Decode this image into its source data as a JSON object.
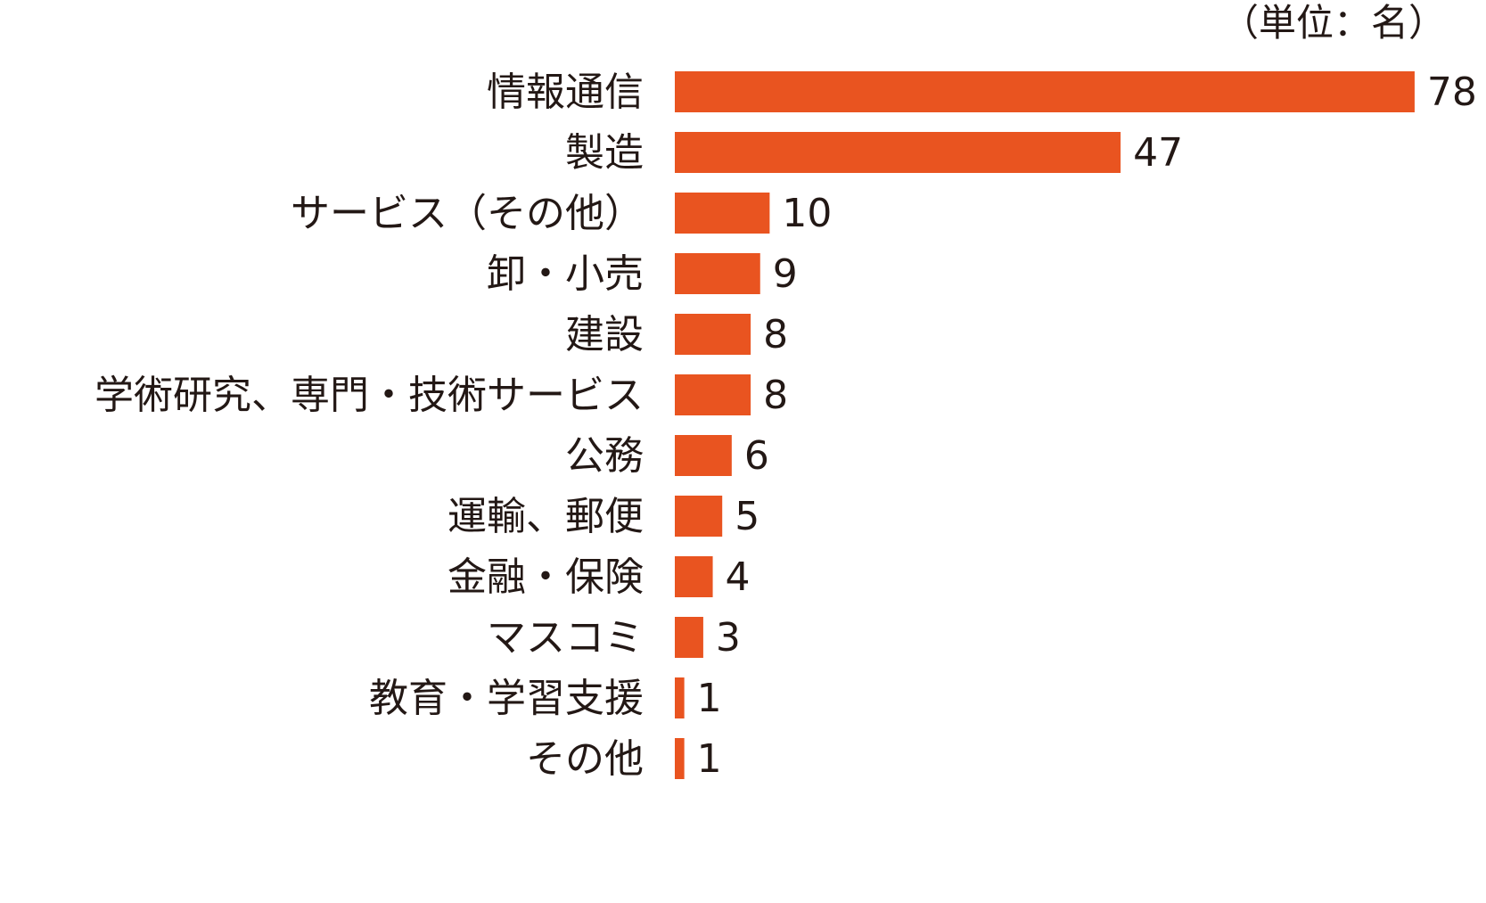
{
  "chart_data": {
    "type": "bar",
    "orientation": "horizontal",
    "unit_note": "（単位：名）",
    "categories": [
      "情報通信",
      "製造",
      "サービス（その他）",
      "卸・小売",
      "建設",
      "学術研究、専門・技術サービス",
      "公務",
      "運輸、郵便",
      "金融・保険",
      "マスコミ",
      "教育・学習支援",
      "その他"
    ],
    "values": [
      78,
      47,
      10,
      9,
      8,
      8,
      6,
      5,
      4,
      3,
      1,
      1
    ],
    "bar_color": "#E95420",
    "text_color": "#231815",
    "grid": false,
    "legend": "none"
  }
}
